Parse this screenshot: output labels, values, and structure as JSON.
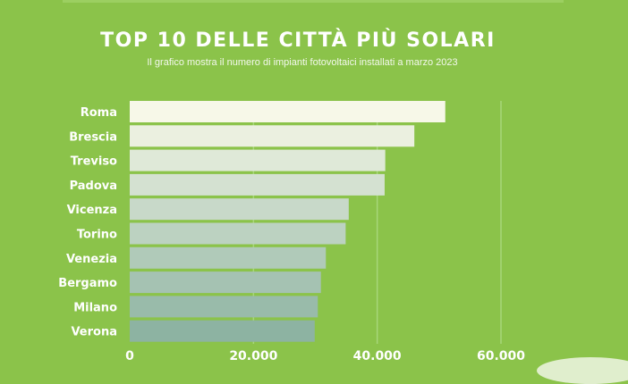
{
  "colors": {
    "background": "#8bc34a",
    "text": "#ffffff",
    "bar_top": "#f7f8e8",
    "bar_bottom": "#8db3a2",
    "grid": "#a7d67a"
  },
  "chart_data": {
    "type": "bar",
    "orientation": "horizontal",
    "title": "TOP 10 DELLE CITTÀ PIÙ SOLARI",
    "subtitle": "Il grafico mostra il numero di impianti fotovoltaici installati a marzo 2023",
    "categories": [
      "Roma",
      "Brescia",
      "Treviso",
      "Padova",
      "Vicenza",
      "Torino",
      "Venezia",
      "Bergamo",
      "Milano",
      "Verona"
    ],
    "values": [
      51000,
      46000,
      41300,
      41200,
      35400,
      34900,
      31700,
      30900,
      30400,
      29900
    ],
    "xlim": [
      0,
      60000
    ],
    "xticks": [
      0,
      20000,
      40000,
      60000
    ],
    "xtick_labels": [
      "0",
      "20.000",
      "40.000",
      "60.000"
    ],
    "grid": true,
    "legend": false
  }
}
